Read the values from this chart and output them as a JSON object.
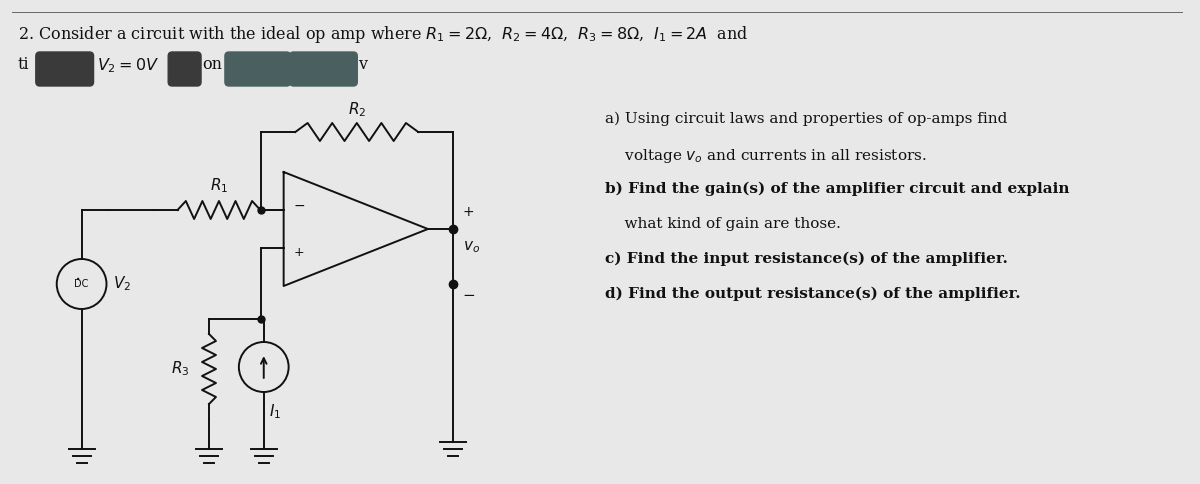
{
  "bg_color": "#e8e8e8",
  "title_line1": "2. Consider a circuit with the ideal op amp where $R_1 = 2\\Omega$,  $R_2 = 4\\Omega$,  $R_3 = 8\\Omega$,  $I_1 = 2A$  and",
  "blob_line_prefix": "ti",
  "blob1_text": "",
  "v2_eq_text": "$V_2 = 0V$",
  "blob2_text": "",
  "after_blob2": "on",
  "blob3_text": "",
  "blob4_text": "",
  "end_text": "v",
  "questions": [
    "a) Using circuit laws and properties of op-amps find",
    "    voltage $v_o$ and currents in all resistors.",
    "b) Find the gain(s) of the amplifier circuit and explain",
    "    what kind of gain are those.",
    "c) Find the input resistance(s) of the amplifier.",
    "d) Find the output resistance(s) of the amplifier."
  ],
  "text_color": "#111111",
  "line_color": "#111111",
  "font_size_title": 11.5,
  "font_size_q": 11,
  "blob_color": "#3a3a3a",
  "blob2_color": "#4a6060"
}
